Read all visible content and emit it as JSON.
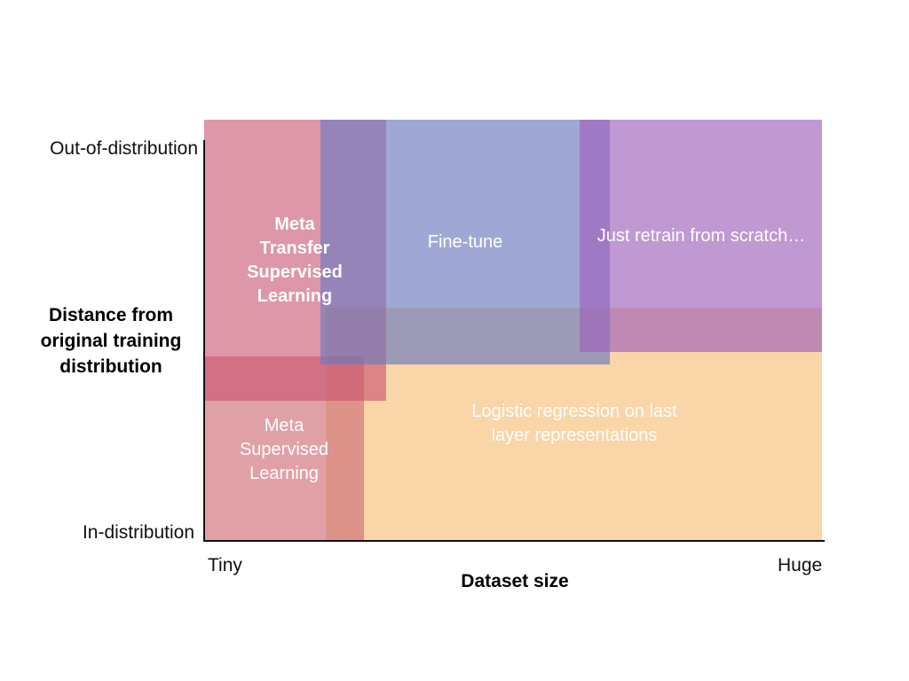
{
  "diagram": {
    "y_axis": {
      "title_lines": [
        "Distance from",
        "original training",
        "distribution"
      ],
      "top_label": "Out-of-distribution",
      "bottom_label": "In-distribution"
    },
    "x_axis": {
      "title": "Dataset size",
      "left_label": "Tiny",
      "right_label": "Huge"
    },
    "regions": {
      "meta_transfer": {
        "lines": [
          "Meta",
          "Transfer",
          "Supervised",
          "Learning"
        ],
        "color": "#c8506f"
      },
      "fine_tune": {
        "lines": [
          "Fine-tune"
        ],
        "color": "#7b86c6"
      },
      "retrain": {
        "lines": [
          "Just retrain from scratch…"
        ],
        "color": "#a871c2"
      },
      "logistic": {
        "lines": [
          "Logistic regression on last",
          "layer representations"
        ],
        "color": "#f6c585"
      },
      "meta_supervised": {
        "lines": [
          "Meta",
          "Supervised",
          "Learning"
        ],
        "color": "#d98088"
      }
    }
  }
}
